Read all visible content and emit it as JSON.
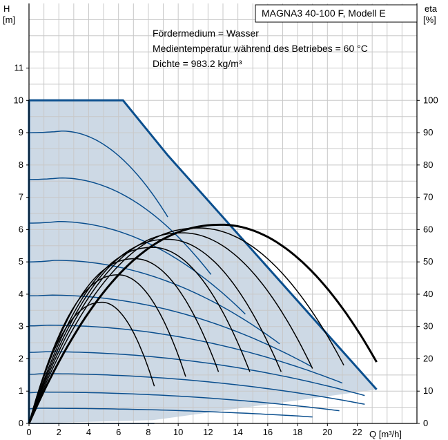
{
  "chart_data": {
    "type": "line",
    "title": "MAGNA3 40-100 F, Modell E",
    "annotations": [
      "Fördermedium = Wasser",
      "Medientemperatur während des Betriebes = 60 °C",
      "Dichte = 983.2 kg/m³"
    ],
    "x_axis": {
      "label": "Q [m³/h]",
      "range": [
        0,
        26
      ],
      "ticks": [
        0,
        2,
        4,
        6,
        8,
        10,
        12,
        14,
        16,
        18,
        20,
        22
      ]
    },
    "y_left": {
      "label_line1": "H",
      "label_line2": "[m]",
      "range": [
        0,
        13
      ],
      "ticks": [
        0,
        1,
        2,
        3,
        4,
        5,
        6,
        7,
        8,
        9,
        10,
        11
      ]
    },
    "y_right": {
      "label_line1": "eta",
      "label_line2": "[%]",
      "range": [
        0,
        130
      ],
      "ticks": [
        0,
        10,
        20,
        30,
        40,
        50,
        60,
        70,
        80,
        90,
        100
      ]
    },
    "grid": true,
    "colors": {
      "envelope_fill": "#cdd9e5",
      "head_curve": "#0b4f8e",
      "max_curve": "#0b4f8e",
      "efficiency_curve": "#000000",
      "grid": "#c8c8c8",
      "axis": "#000000"
    },
    "max_curve": [
      [
        0,
        10
      ],
      [
        6.3,
        10
      ],
      [
        9.3,
        8.3
      ],
      [
        23.3,
        1.05
      ]
    ],
    "min_curve": [
      [
        8.3,
        0.1
      ],
      [
        23.3,
        1.05
      ]
    ],
    "head_curves": [
      {
        "shutoff": 9.0,
        "hmax": 9.05,
        "qpeak": 2.2,
        "qend": 9.3
      },
      {
        "shutoff": 7.55,
        "hmax": 7.6,
        "qpeak": 2.1,
        "qend": 12.2
      },
      {
        "shutoff": 6.2,
        "hmax": 6.25,
        "qpeak": 1.9,
        "qend": 14.5
      },
      {
        "shutoff": 5.0,
        "hmax": 5.05,
        "qpeak": 1.7,
        "qend": 16.8
      },
      {
        "shutoff": 3.95,
        "hmax": 3.97,
        "qpeak": 1.4,
        "qend": 18.9
      },
      {
        "shutoff": 3.02,
        "hmax": 3.04,
        "qpeak": 1.2,
        "qend": 21.0
      },
      {
        "shutoff": 2.2,
        "hmax": 2.22,
        "qpeak": 1.0,
        "qend": 22.5
      },
      {
        "shutoff": 1.52,
        "hmax": 1.54,
        "qpeak": 0.8,
        "qend": 22.5
      },
      {
        "shutoff": 0.95,
        "hmax": 0.97,
        "qpeak": 0.6,
        "qend": 20.8
      },
      {
        "shutoff": 0.45,
        "hmax": 0.47,
        "qpeak": 0.4,
        "qend": 19.0
      },
      {
        "shutoff": 0.0,
        "hmax": 0.0,
        "qpeak": 0.2,
        "qend": 8.4
      }
    ],
    "efficiency_curves": [
      {
        "qmax": 4.9,
        "etamax": 37.5,
        "qend": 8.4,
        "etaend": 11.5,
        "width": 1.5
      },
      {
        "qmax": 6.0,
        "etamax": 46.0,
        "qend": 10.5,
        "etaend": 14.5,
        "width": 1.5
      },
      {
        "qmax": 7.1,
        "etamax": 51.0,
        "qend": 12.7,
        "etaend": 16.0,
        "width": 1.5
      },
      {
        "qmax": 8.3,
        "etamax": 54.5,
        "qend": 14.8,
        "etaend": 16.0,
        "width": 1.5
      },
      {
        "qmax": 9.3,
        "etamax": 57.0,
        "qend": 16.9,
        "etaend": 16.0,
        "width": 1.5
      },
      {
        "qmax": 10.3,
        "etamax": 59.0,
        "qend": 19.0,
        "etaend": 17.0,
        "width": 1.5
      },
      {
        "qmax": 11.4,
        "etamax": 60.5,
        "qend": 21.1,
        "etaend": 18.0,
        "width": 1.5
      },
      {
        "qmax": 12.9,
        "etamax": 61.5,
        "qend": 23.3,
        "etaend": 19.0,
        "width": 3
      }
    ]
  }
}
